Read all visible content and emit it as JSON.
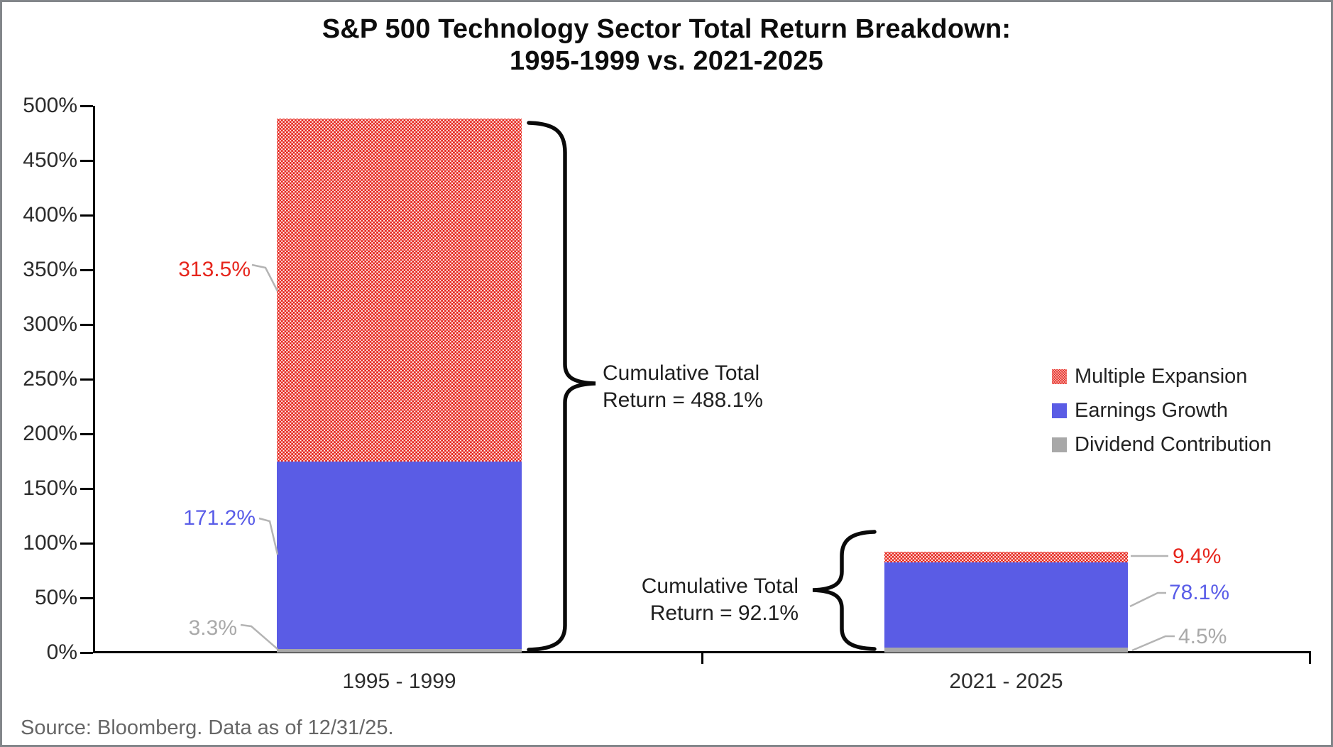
{
  "chart_data": {
    "type": "bar",
    "stacked": true,
    "title_lines": [
      "S&P 500 Technology Sector Total Return Breakdown:",
      "1995-1999 vs. 2021-2025"
    ],
    "categories": [
      "1995 - 1999",
      "2021 - 2025"
    ],
    "series": [
      {
        "name": "Multiple Expansion",
        "key": "multiple",
        "style": "red-dot-pattern",
        "color": "#e6251c",
        "values": [
          313.5,
          9.4
        ],
        "labels": [
          "313.5%",
          "9.4%"
        ]
      },
      {
        "name": "Earnings Growth",
        "key": "earnings",
        "style": "solid",
        "color": "#5a5ce5",
        "values": [
          171.2,
          78.1
        ],
        "labels": [
          "171.2%",
          "78.1%"
        ]
      },
      {
        "name": "Dividend Contribution",
        "key": "dividend",
        "style": "solid",
        "color": "#a8a8a8",
        "values": [
          3.3,
          4.5
        ],
        "labels": [
          "3.3%",
          "4.5%"
        ]
      }
    ],
    "totals": [
      488.1,
      92.1
    ],
    "annotations": [
      {
        "lines": [
          "Cumulative Total",
          "Return = 488.1%"
        ]
      },
      {
        "lines": [
          "Cumulative Total",
          "Return = 92.1%"
        ]
      }
    ],
    "ylabel": "",
    "xlabel": "",
    "ylim": [
      0,
      500
    ],
    "ytick_values": [
      0,
      50,
      100,
      150,
      200,
      250,
      300,
      350,
      400,
      450,
      500
    ],
    "ytick_labels": [
      "0%",
      "50%",
      "100%",
      "150%",
      "200%",
      "250%",
      "300%",
      "350%",
      "400%",
      "450%",
      "500%"
    ],
    "grid": false,
    "legend_position": "right"
  },
  "colors": {
    "multiple_expansion_red": "#e6251c",
    "earnings_growth_blue": "#5a5ce5",
    "dividend_gray": "#a8a8a8",
    "leader_line_gray": "#b4b4b4",
    "axis_black": "#000000"
  },
  "source_note": "Source: Bloomberg. Data as of 12/31/25."
}
